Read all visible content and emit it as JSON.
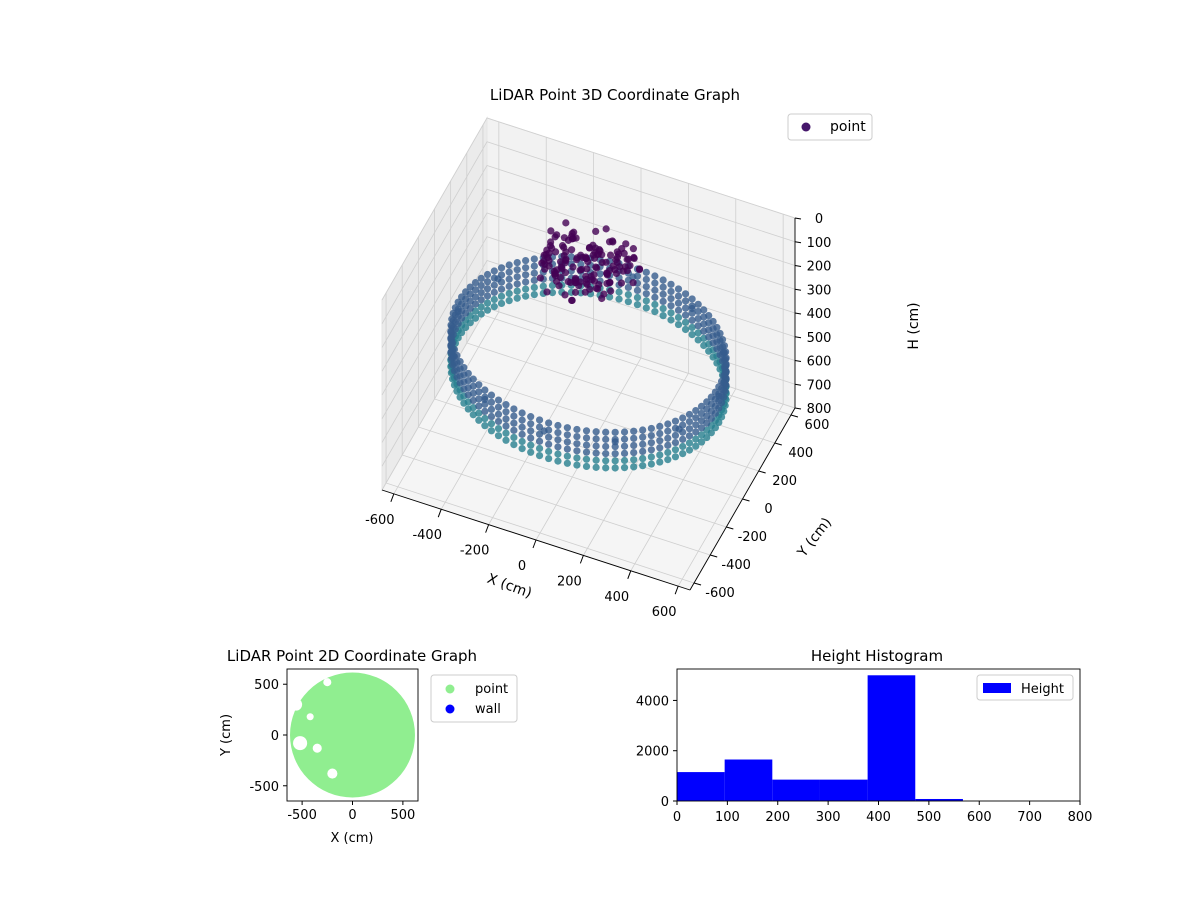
{
  "chart_data": [
    {
      "type": "scatter",
      "projection": "3d",
      "title": "LiDAR Point 3D Coordinate Graph",
      "xlabel": "X (cm)",
      "ylabel": "Y (cm)",
      "zlabel": "H (cm)",
      "xlim": [
        -650,
        650
      ],
      "ylim": [
        -650,
        650
      ],
      "zlim": [
        0,
        800
      ],
      "zaxis_inverted": true,
      "xticks": [
        -600,
        -400,
        -200,
        0,
        200,
        400,
        600
      ],
      "yticks": [
        -600,
        -400,
        -200,
        0,
        200,
        400,
        600
      ],
      "zticks": [
        0,
        100,
        200,
        300,
        400,
        500,
        600,
        700,
        800
      ],
      "grid": true,
      "colormap": "viridis",
      "legend_position": "upper-right",
      "series": [
        {
          "name": "point",
          "color": "#46176b",
          "shape": "cylindrical-wall",
          "wall_radius": 550,
          "wall_height_range": [
            380,
            470
          ],
          "center_cluster": {
            "x": [
              -200,
              150
            ],
            "y": [
              -100,
              250
            ],
            "h": [
              0,
              150
            ]
          },
          "points": [
            {
              "x": 0,
              "y": 550,
              "h": 400
            },
            {
              "x": 275,
              "y": 476,
              "h": 400
            },
            {
              "x": 476,
              "y": 275,
              "h": 400
            },
            {
              "x": 550,
              "y": 0,
              "h": 400
            },
            {
              "x": 476,
              "y": -275,
              "h": 400
            },
            {
              "x": 275,
              "y": -476,
              "h": 400
            },
            {
              "x": 0,
              "y": -550,
              "h": 400
            },
            {
              "x": -275,
              "y": -476,
              "h": 400
            },
            {
              "x": -476,
              "y": -275,
              "h": 400
            },
            {
              "x": -550,
              "y": 0,
              "h": 400
            },
            {
              "x": -476,
              "y": 275,
              "h": 400
            },
            {
              "x": -275,
              "y": 476,
              "h": 400
            },
            {
              "x": -50,
              "y": 50,
              "h": 30
            },
            {
              "x": 40,
              "y": 100,
              "h": 60
            },
            {
              "x": -120,
              "y": 150,
              "h": 20
            },
            {
              "x": 80,
              "y": 30,
              "h": 90
            }
          ]
        }
      ]
    },
    {
      "type": "scatter",
      "title": "LiDAR Point 2D Coordinate Graph",
      "xlabel": "X (cm)",
      "ylabel": "Y (cm)",
      "xlim": [
        -650,
        650
      ],
      "ylim": [
        -650,
        650
      ],
      "xticks": [
        -500,
        0,
        500
      ],
      "yticks": [
        -500,
        0,
        500
      ],
      "legend_position": "outside-right",
      "series": [
        {
          "name": "point",
          "color": "#90ee90",
          "region": "disk",
          "radius": 620
        },
        {
          "name": "wall",
          "color": "#0000ff",
          "points": []
        }
      ]
    },
    {
      "type": "bar",
      "title": "Height Histogram",
      "xlim": [
        0,
        800
      ],
      "ylim": [
        0,
        5250
      ],
      "xticks": [
        0,
        100,
        200,
        300,
        400,
        500,
        600,
        700,
        800
      ],
      "yticks": [
        0,
        2000,
        4000
      ],
      "legend_position": "upper-right",
      "series": [
        {
          "name": "Height",
          "color": "#0000ff",
          "bins": [
            {
              "from": 0,
              "to": 94.6,
              "count": 1150
            },
            {
              "from": 94.6,
              "to": 189.2,
              "count": 1650
            },
            {
              "from": 189.2,
              "to": 283.8,
              "count": 850
            },
            {
              "from": 283.8,
              "to": 378.4,
              "count": 850
            },
            {
              "from": 378.4,
              "to": 473,
              "count": 5000
            },
            {
              "from": 473,
              "to": 567.6,
              "count": 80
            }
          ]
        }
      ]
    }
  ]
}
